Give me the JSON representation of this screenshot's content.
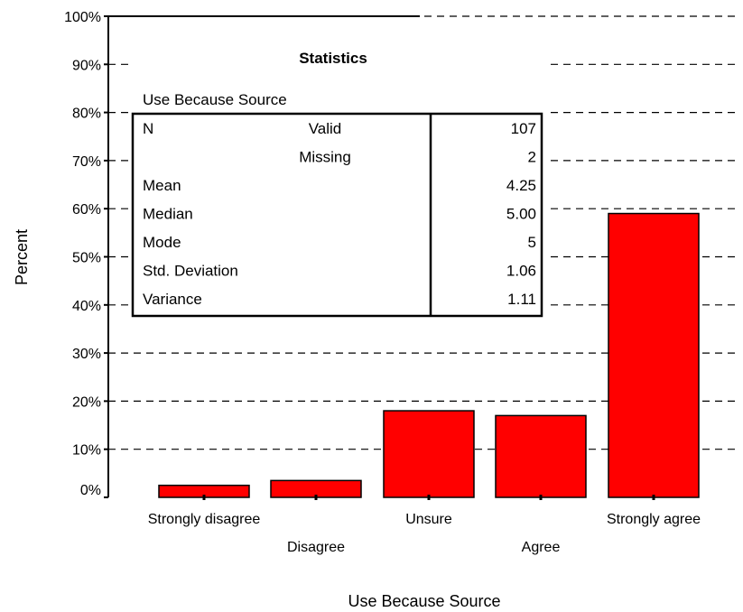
{
  "chart_data": {
    "type": "bar",
    "categories": [
      "Strongly disagree",
      "Disagree",
      "Unsure",
      "Agree",
      "Strongly agree"
    ],
    "values": [
      2.5,
      3.5,
      18,
      17,
      59
    ],
    "xlabel": "Use Because Source",
    "ylabel": "Percent",
    "ylim": [
      0,
      100
    ],
    "yticks": [
      "0%",
      "10%",
      "20%",
      "30%",
      "40%",
      "50%",
      "60%",
      "70%",
      "80%",
      "90%",
      "100%"
    ],
    "grid": "dashed horizontal",
    "bar_color": "#ff0000"
  },
  "statistics": {
    "title": "Statistics",
    "variable": "Use Because Source",
    "rows": [
      {
        "label": "N",
        "sublabel": "Valid",
        "value": "107"
      },
      {
        "label": "",
        "sublabel": "Missing",
        "value": "2"
      },
      {
        "label": "Mean",
        "sublabel": "",
        "value": "4.25"
      },
      {
        "label": "Median",
        "sublabel": "",
        "value": "5.00"
      },
      {
        "label": "Mode",
        "sublabel": "",
        "value": "5"
      },
      {
        "label": "Std. Deviation",
        "sublabel": "",
        "value": "1.06"
      },
      {
        "label": "Variance",
        "sublabel": "",
        "value": "1.11"
      }
    ]
  }
}
